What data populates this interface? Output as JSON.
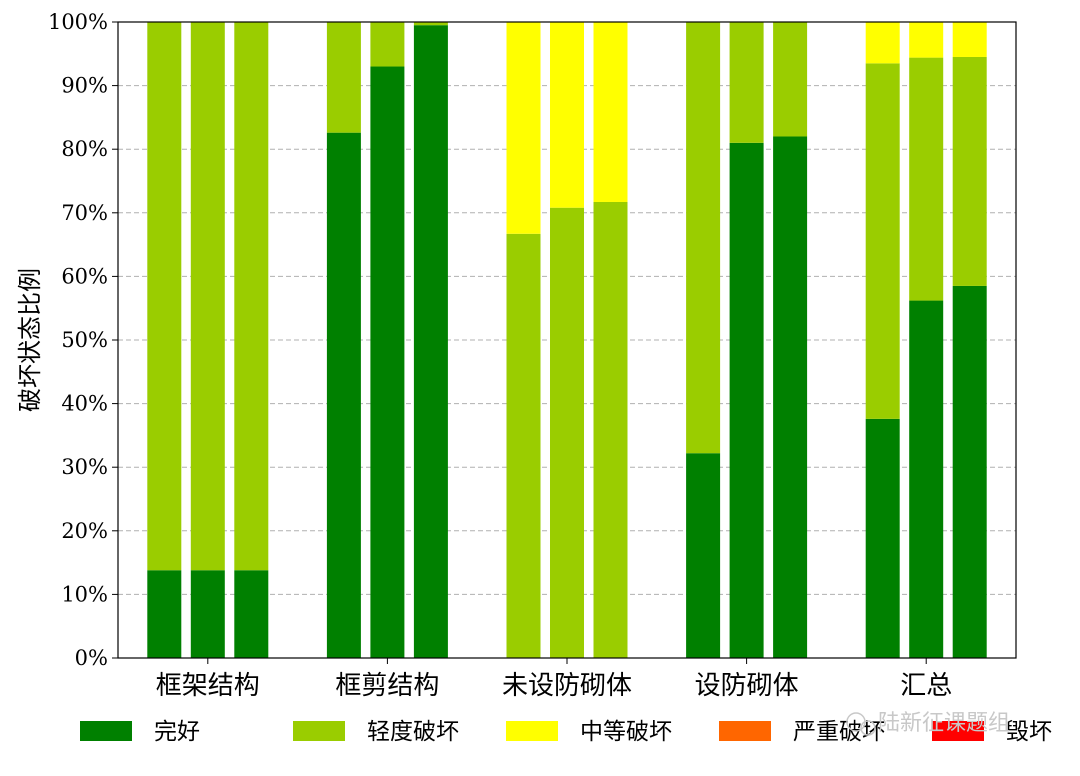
{
  "chart_data": {
    "type": "bar",
    "stacked": true,
    "ylabel": "破坏状态比例",
    "xlabel": "",
    "ylim": [
      0,
      1
    ],
    "yticks": [
      "0%",
      "10%",
      "20%",
      "30%",
      "40%",
      "50%",
      "60%",
      "70%",
      "80%",
      "90%",
      "100%"
    ],
    "grid": "horizontal dashed",
    "legend_position": "bottom",
    "categories": [
      "框架结构",
      "框剪结构",
      "未设防砌体",
      "设防砌体",
      "汇总"
    ],
    "bars_per_category": 3,
    "series": [
      {
        "name": "完好",
        "color": "#008000",
        "values": [
          [
            0.138,
            0.138,
            0.138
          ],
          [
            0.826,
            0.93,
            0.995
          ],
          [
            0.0,
            0.0,
            0.0
          ],
          [
            0.322,
            0.81,
            0.82
          ],
          [
            0.376,
            0.562,
            0.585
          ]
        ]
      },
      {
        "name": "轻度破坏",
        "color": "#9acd00",
        "values": [
          [
            0.862,
            0.862,
            0.862
          ],
          [
            0.174,
            0.07,
            0.005
          ],
          [
            0.667,
            0.708,
            0.717
          ],
          [
            0.678,
            0.19,
            0.18
          ],
          [
            0.559,
            0.382,
            0.36
          ]
        ]
      },
      {
        "name": "中等破坏",
        "color": "#ffff00",
        "values": [
          [
            0,
            0,
            0
          ],
          [
            0,
            0,
            0
          ],
          [
            0.333,
            0.292,
            0.283
          ],
          [
            0,
            0,
            0
          ],
          [
            0.065,
            0.056,
            0.055
          ]
        ]
      },
      {
        "name": "严重破坏",
        "color": "#ff6600",
        "values": [
          [
            0,
            0,
            0
          ],
          [
            0,
            0,
            0
          ],
          [
            0,
            0,
            0
          ],
          [
            0,
            0,
            0
          ],
          [
            0,
            0,
            0
          ]
        ]
      },
      {
        "name": "毁坏",
        "color": "#ff0000",
        "values": [
          [
            0,
            0,
            0
          ],
          [
            0,
            0,
            0
          ],
          [
            0,
            0,
            0
          ],
          [
            0,
            0,
            0
          ],
          [
            0,
            0,
            0
          ]
        ]
      }
    ]
  },
  "watermark": {
    "text": "陆新征课题组"
  }
}
